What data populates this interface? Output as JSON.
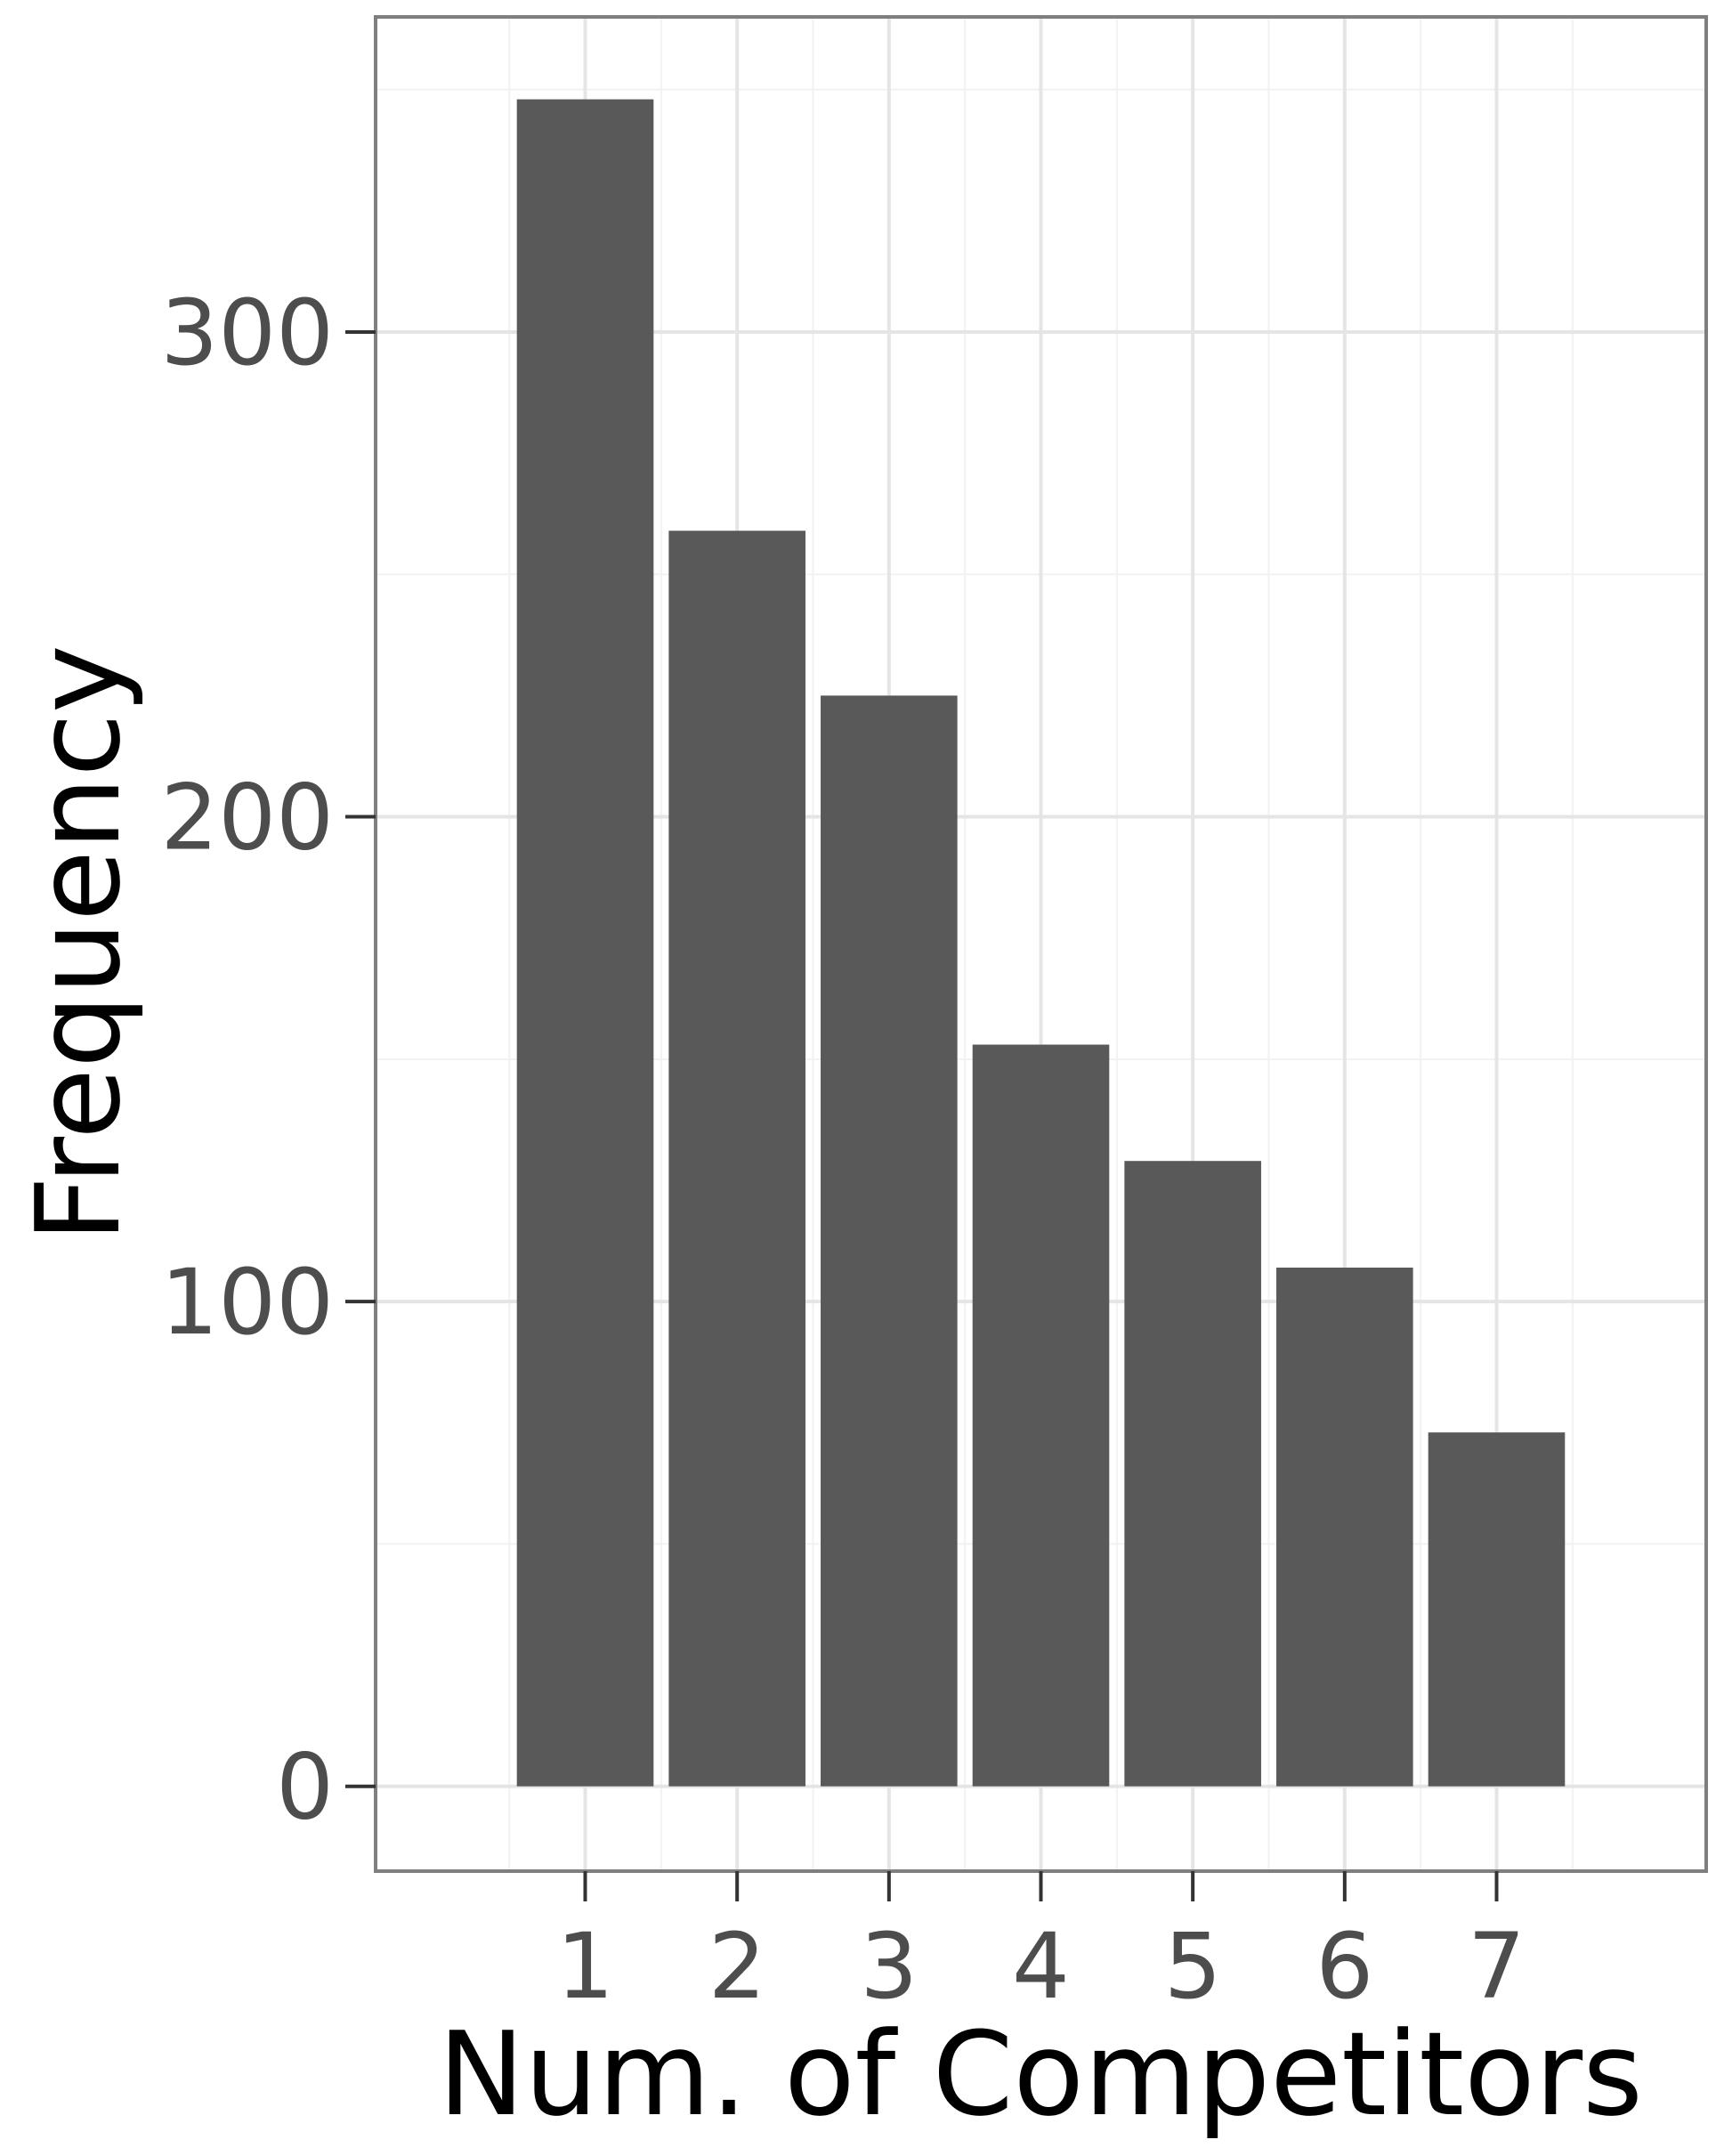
{
  "chart_data": {
    "type": "bar",
    "title": "",
    "xlabel": "Num. of Competitors",
    "ylabel": "Frequency",
    "categories": [
      "1",
      "2",
      "3",
      "4",
      "5",
      "6",
      "7"
    ],
    "values": [
      348,
      259,
      225,
      153,
      129,
      107,
      73
    ],
    "ylim": [
      -17.5,
      365
    ],
    "yticks": [
      0,
      100,
      200,
      300
    ],
    "ytick_labels": [
      "0",
      "100",
      "200",
      "300"
    ],
    "grid": true,
    "legend": "none",
    "colors": {
      "bar": "#595959",
      "panel_background": "#ffffff",
      "grid_major": "#e5e5e5",
      "grid_minor": "#f2f2f2",
      "panel_border": "#7f7f7f",
      "tick_text": "#4d4d4d",
      "axis_title": "#000000"
    }
  }
}
